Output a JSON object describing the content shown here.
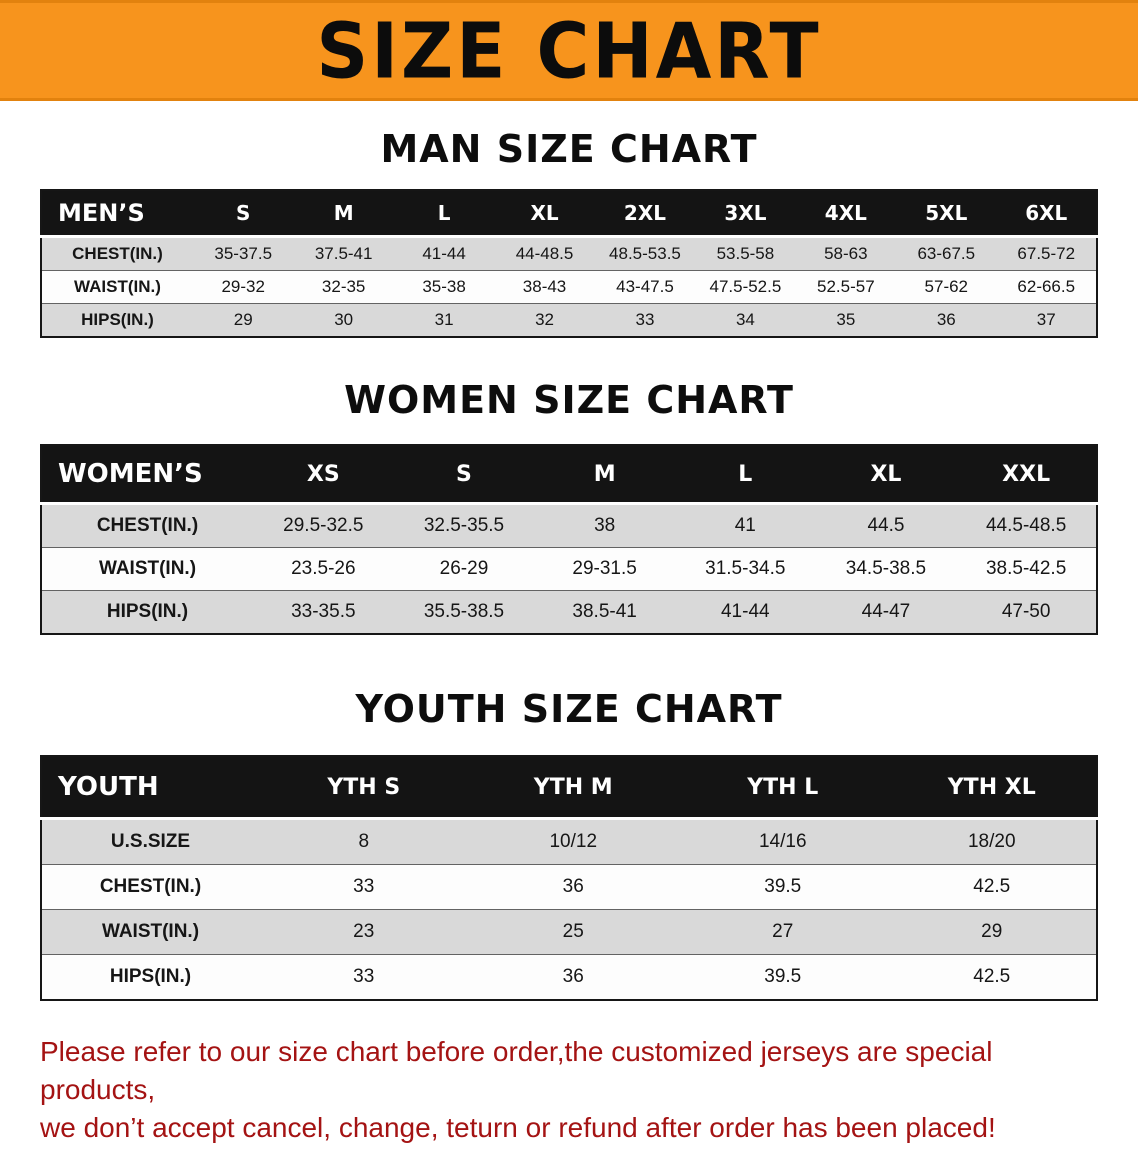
{
  "banner": {
    "title": "SIZE CHART"
  },
  "colors": {
    "banner_orange": "#f7941d",
    "header_black": "#141414",
    "row_gray": "#d9d9d9",
    "footer_red": "#a41313"
  },
  "sections": {
    "men": {
      "heading": "MAN SIZE CHART"
    },
    "women": {
      "heading": "WOMEN SIZE CHART"
    },
    "youth": {
      "heading": "YOUTH SIZE CHART"
    }
  },
  "tables": {
    "men": {
      "header": [
        "MEN’S",
        "S",
        "M",
        "L",
        "XL",
        "2XL",
        "3XL",
        "4XL",
        "5XL",
        "6XL"
      ],
      "rows": [
        [
          "CHEST(IN.)",
          "35-37.5",
          "37.5-41",
          "41-44",
          "44-48.5",
          "48.5-53.5",
          "53.5-58",
          "58-63",
          "63-67.5",
          "67.5-72"
        ],
        [
          "WAIST(IN.)",
          "29-32",
          "32-35",
          "35-38",
          "38-43",
          "43-47.5",
          "47.5-52.5",
          "52.5-57",
          "57-62",
          "62-66.5"
        ],
        [
          "HIPS(IN.)",
          "29",
          "30",
          "31",
          "32",
          "33",
          "34",
          "35",
          "36",
          "37"
        ]
      ]
    },
    "women": {
      "header": [
        "WOMEN’S",
        "XS",
        "S",
        "M",
        "L",
        "XL",
        "XXL"
      ],
      "rows": [
        [
          "CHEST(IN.)",
          "29.5-32.5",
          "32.5-35.5",
          "38",
          "41",
          "44.5",
          "44.5-48.5"
        ],
        [
          "WAIST(IN.)",
          "23.5-26",
          "26-29",
          "29-31.5",
          "31.5-34.5",
          "34.5-38.5",
          "38.5-42.5"
        ],
        [
          "HIPS(IN.)",
          "33-35.5",
          "35.5-38.5",
          "38.5-41",
          "41-44",
          "44-47",
          "47-50"
        ]
      ]
    },
    "youth": {
      "header": [
        "YOUTH",
        "YTH S",
        "YTH M",
        "YTH L",
        "YTH XL"
      ],
      "rows": [
        [
          "U.S.SIZE",
          "8",
          "10/12",
          "14/16",
          "18/20"
        ],
        [
          "CHEST(IN.)",
          "33",
          "36",
          "39.5",
          "42.5"
        ],
        [
          "WAIST(IN.)",
          "23",
          "25",
          "27",
          "29"
        ],
        [
          "HIPS(IN.)",
          "33",
          "36",
          "39.5",
          "42.5"
        ]
      ]
    }
  },
  "disclaimer": {
    "line1": "Please refer to our size chart before order,the customized jerseys are special products,",
    "line2": "we don’t accept cancel, change, teturn or refund after order has been placed!"
  }
}
